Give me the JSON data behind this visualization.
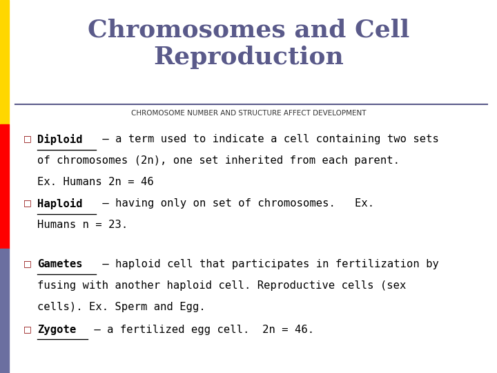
{
  "title": "Chromosomes and Cell\nReproduction",
  "title_color": "#5a5a8a",
  "subtitle": "CHROMOSOME NUMBER AND STRUCTURE AFFECT DEVELOPMENT",
  "subtitle_color": "#333333",
  "background_color": "#ffffff",
  "left_bar_colors": [
    "#FFD700",
    "#FF0000",
    "#6B6FA0"
  ],
  "left_bar_width": 0.018,
  "separator_color": "#5a5a8a",
  "bullet_color": "#8a0000",
  "bullet_char": "□",
  "items": [
    {
      "term": "Diploid",
      "text": " – a term used to indicate a cell containing two sets\nof chromosomes (2n), one set inherited from each parent.\nEx. Humans 2n = 46"
    },
    {
      "term": "Haploid",
      "text": " – having only on set of chromosomes.   Ex.\nHumans n = 23."
    },
    {
      "term": "Gametes",
      "text": " – haploid cell that participates in fertilization by\nfusing with another haploid cell. Reproductive cells (sex\ncells). Ex. Sperm and Egg."
    },
    {
      "term": "Zygote",
      "text": " – a fertilized egg cell.  2n = 46."
    }
  ],
  "figsize": [
    7.2,
    5.4
  ],
  "dpi": 100
}
